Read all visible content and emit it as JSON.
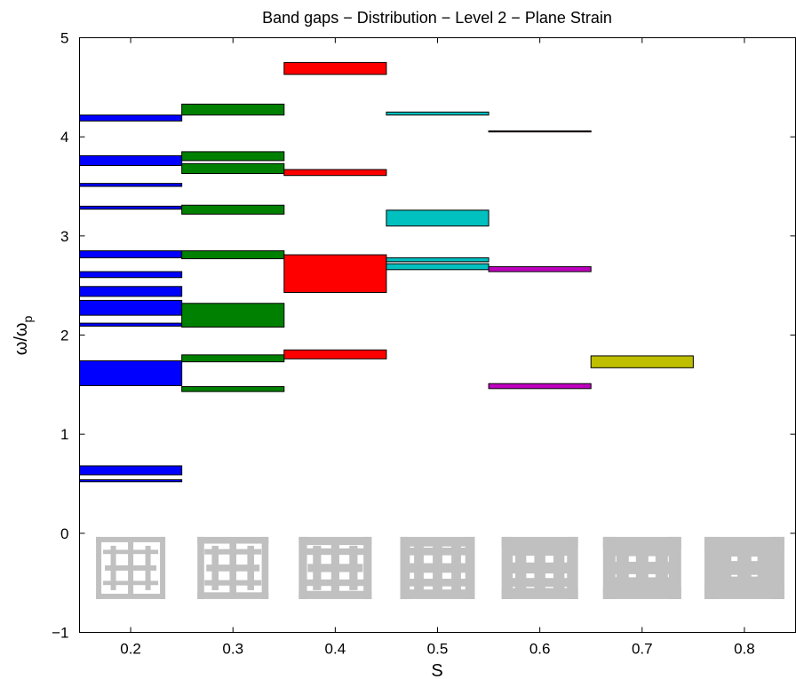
{
  "chart_data": {
    "type": "bar",
    "title": "Band gaps − Distribution − Level 2 − Plane Strain",
    "xlabel": "S",
    "ylabel_main": "ω/ω",
    "ylabel_sub": "p",
    "xlim": [
      0.15,
      0.85
    ],
    "ylim": [
      -1,
      5
    ],
    "xticks": [
      "0.2",
      "0.3",
      "0.4",
      "0.5",
      "0.6",
      "0.7",
      "0.8"
    ],
    "yticks": [
      "−1",
      "0",
      "1",
      "2",
      "3",
      "4",
      "5"
    ],
    "grid": false,
    "series": [
      {
        "x": 0.2,
        "color": "#0000ff",
        "gaps": [
          [
            0.52,
            0.54
          ],
          [
            0.59,
            0.68
          ],
          [
            1.49,
            1.74
          ],
          [
            2.09,
            2.12
          ],
          [
            2.2,
            2.35
          ],
          [
            2.39,
            2.49
          ],
          [
            2.58,
            2.64
          ],
          [
            2.78,
            2.85
          ],
          [
            3.27,
            3.3
          ],
          [
            3.5,
            3.53
          ],
          [
            3.71,
            3.81
          ],
          [
            4.16,
            4.22
          ]
        ]
      },
      {
        "x": 0.3,
        "color": "#008000",
        "gaps": [
          [
            1.43,
            1.48
          ],
          [
            1.73,
            1.8
          ],
          [
            2.08,
            2.32
          ],
          [
            2.77,
            2.85
          ],
          [
            3.22,
            3.31
          ],
          [
            3.63,
            3.73
          ],
          [
            3.76,
            3.85
          ],
          [
            4.22,
            4.33
          ]
        ]
      },
      {
        "x": 0.4,
        "color": "#ff0000",
        "gaps": [
          [
            1.76,
            1.85
          ],
          [
            2.43,
            2.81
          ],
          [
            3.61,
            3.67
          ],
          [
            4.63,
            4.75
          ]
        ]
      },
      {
        "x": 0.5,
        "color": "#00c0c0",
        "gaps": [
          [
            2.66,
            2.72
          ],
          [
            2.74,
            2.78
          ],
          [
            3.1,
            3.26
          ],
          [
            4.22,
            4.25
          ]
        ]
      },
      {
        "x": 0.6,
        "color": "#bf00bf",
        "gaps": [
          [
            1.46,
            1.51
          ],
          [
            2.64,
            2.69
          ],
          [
            4.05,
            4.06
          ]
        ]
      },
      {
        "x": 0.7,
        "color": "#bfbf00",
        "gaps": [
          [
            1.67,
            1.79
          ]
        ]
      }
    ]
  }
}
